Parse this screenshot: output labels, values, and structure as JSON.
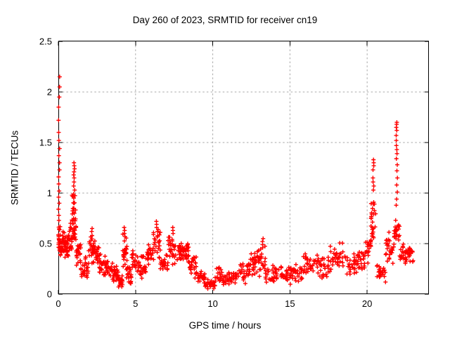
{
  "chart_data": {
    "type": "scatter",
    "title": "Day 260 of 2023, SRMTID for receiver cn19",
    "xlabel": "GPS time / hours",
    "ylabel": "SRMTID / TECUs",
    "xlim": [
      0,
      24
    ],
    "ylim": [
      0,
      2.5
    ],
    "xticks": [
      {
        "v": 0,
        "label": "0"
      },
      {
        "v": 5,
        "label": "5"
      },
      {
        "v": 10,
        "label": "10"
      },
      {
        "v": 15,
        "label": "15"
      },
      {
        "v": 20,
        "label": "20"
      }
    ],
    "yticks": [
      {
        "v": 0,
        "label": "0"
      },
      {
        "v": 0.5,
        "label": "0.5"
      },
      {
        "v": 1,
        "label": "1"
      },
      {
        "v": 1.5,
        "label": "1.5"
      },
      {
        "v": 2,
        "label": "2"
      },
      {
        "v": 2.5,
        "label": "2.5"
      }
    ],
    "grid": true,
    "legend": "none",
    "marker": "plus",
    "colors": {
      "marker": "#ff0000",
      "grid": "#a8a8a8",
      "frame": "#000000",
      "background": "#ffffff",
      "text": "#000000"
    },
    "series_name": "SRMTID for receiver cn19",
    "bands_format": [
      "hour_start",
      "hour_end",
      "tecu_min",
      "tecu_max",
      "n_points"
    ],
    "bands": [
      [
        0.0,
        0.12,
        0.38,
        0.7,
        22
      ],
      [
        0.12,
        0.38,
        0.33,
        0.66,
        26
      ],
      [
        0.38,
        0.62,
        0.3,
        0.62,
        26
      ],
      [
        0.62,
        0.88,
        0.34,
        0.72,
        24
      ],
      [
        0.88,
        1.15,
        0.45,
        1.05,
        30
      ],
      [
        1.15,
        1.45,
        0.25,
        0.55,
        24
      ],
      [
        1.45,
        1.95,
        0.1,
        0.42,
        28
      ],
      [
        1.95,
        2.3,
        0.28,
        0.62,
        26
      ],
      [
        2.3,
        2.65,
        0.25,
        0.55,
        24
      ],
      [
        2.65,
        3.05,
        0.15,
        0.4,
        24
      ],
      [
        3.05,
        3.55,
        0.13,
        0.37,
        26
      ],
      [
        3.55,
        3.9,
        0.1,
        0.3,
        22
      ],
      [
        3.9,
        4.15,
        0.04,
        0.2,
        16
      ],
      [
        4.15,
        4.45,
        0.15,
        0.62,
        24
      ],
      [
        4.45,
        4.75,
        0.08,
        0.32,
        20
      ],
      [
        4.75,
        5.25,
        0.18,
        0.45,
        26
      ],
      [
        5.25,
        5.75,
        0.15,
        0.4,
        26
      ],
      [
        5.75,
        6.1,
        0.25,
        0.52,
        24
      ],
      [
        6.1,
        6.6,
        0.28,
        0.68,
        28
      ],
      [
        6.6,
        7.1,
        0.18,
        0.45,
        26
      ],
      [
        7.1,
        7.6,
        0.28,
        0.62,
        28
      ],
      [
        7.6,
        8.1,
        0.3,
        0.56,
        28
      ],
      [
        8.1,
        8.45,
        0.28,
        0.52,
        24
      ],
      [
        8.45,
        9.0,
        0.15,
        0.4,
        26
      ],
      [
        9.0,
        9.5,
        0.08,
        0.25,
        24
      ],
      [
        9.5,
        10.15,
        0.04,
        0.15,
        26
      ],
      [
        10.15,
        10.8,
        0.07,
        0.28,
        26
      ],
      [
        10.8,
        11.7,
        0.08,
        0.24,
        34
      ],
      [
        11.7,
        12.4,
        0.1,
        0.32,
        28
      ],
      [
        12.4,
        12.9,
        0.15,
        0.44,
        24
      ],
      [
        12.9,
        13.4,
        0.15,
        0.52,
        24
      ],
      [
        13.4,
        14.3,
        0.1,
        0.32,
        32
      ],
      [
        14.3,
        15.1,
        0.08,
        0.28,
        30
      ],
      [
        15.1,
        15.8,
        0.12,
        0.32,
        26
      ],
      [
        15.8,
        16.9,
        0.16,
        0.44,
        36
      ],
      [
        16.9,
        17.6,
        0.14,
        0.38,
        26
      ],
      [
        17.6,
        18.7,
        0.18,
        0.55,
        34
      ],
      [
        18.7,
        19.4,
        0.18,
        0.42,
        26
      ],
      [
        19.4,
        19.85,
        0.22,
        0.45,
        20
      ],
      [
        19.85,
        20.25,
        0.3,
        0.6,
        20
      ],
      [
        20.25,
        20.55,
        0.45,
        1.0,
        26
      ],
      [
        20.55,
        21.2,
        0.1,
        0.32,
        26
      ],
      [
        21.2,
        21.75,
        0.28,
        0.62,
        26
      ],
      [
        21.75,
        22.1,
        0.45,
        0.8,
        24
      ],
      [
        22.1,
        22.6,
        0.25,
        0.55,
        26
      ],
      [
        22.6,
        23.0,
        0.3,
        0.52,
        20
      ]
    ],
    "columns_format": [
      "hour",
      "tecu_values"
    ],
    "columns": [
      [
        0.05,
        [
          2.15,
          2.05,
          1.95,
          1.85,
          1.72,
          1.6,
          1.52,
          1.44,
          1.37,
          1.3,
          1.23,
          1.16,
          1.09,
          1.02,
          0.96,
          0.9,
          0.84,
          0.78,
          0.73
        ]
      ],
      [
        1.02,
        [
          1.3,
          1.27,
          1.24,
          1.21,
          1.18,
          1.15,
          1.11,
          1.07,
          1.03,
          0.99,
          0.95,
          0.9,
          0.85,
          0.8,
          0.75,
          0.7,
          0.65,
          0.6,
          0.55
        ]
      ],
      [
        2.15,
        [
          0.65,
          0.62,
          0.58
        ]
      ],
      [
        4.3,
        [
          0.66,
          0.63,
          0.6,
          0.57
        ]
      ],
      [
        6.38,
        [
          0.72,
          0.69,
          0.66,
          0.62
        ]
      ],
      [
        7.4,
        [
          0.66,
          0.63,
          0.6
        ]
      ],
      [
        13.22,
        [
          0.55,
          0.52,
          0.49,
          0.46
        ]
      ],
      [
        20.4,
        [
          1.33,
          1.3,
          1.27,
          1.23,
          1.15,
          1.11,
          1.07,
          1.03
        ]
      ],
      [
        21.92,
        [
          1.7,
          1.68,
          1.65,
          1.62,
          1.57,
          1.52,
          1.47,
          1.43,
          1.39,
          1.34,
          1.28,
          1.22,
          1.15,
          1.08,
          1.01,
          0.94,
          0.88
        ]
      ]
    ]
  }
}
